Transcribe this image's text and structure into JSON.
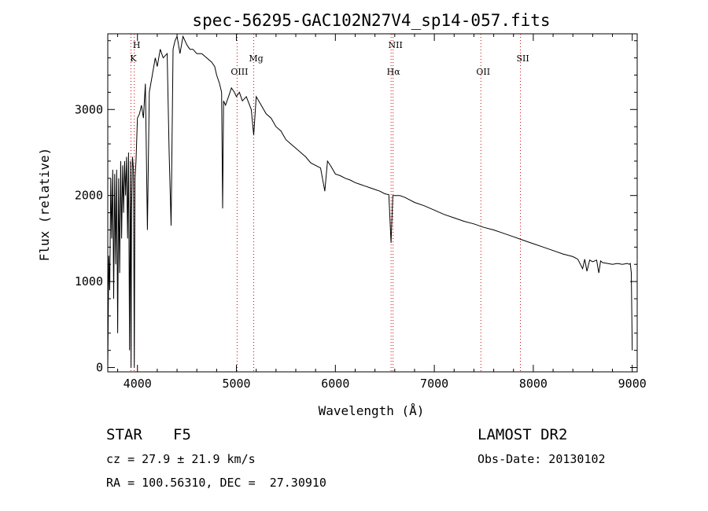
{
  "chart_data": {
    "type": "line",
    "title": "spec-56295-GAC102N27V4_sp14-057.fits",
    "xlabel": "Wavelength (Å)",
    "ylabel": "Flux (relative)",
    "xlim": [
      3700,
      9050
    ],
    "ylim": [
      -50,
      3880
    ],
    "xticks": [
      4000,
      5000,
      6000,
      7000,
      8000,
      9000
    ],
    "yticks": [
      0,
      1000,
      2000,
      3000
    ],
    "xtick_labels": [
      "4000",
      "5000",
      "6000",
      "7000",
      "8000",
      "9000"
    ],
    "ytick_labels": [
      "0",
      "1000",
      "2000",
      "3000"
    ],
    "grid": false,
    "line_color": "#000000",
    "marker_color": "#cc0000",
    "spectral_lines": [
      {
        "label": "H",
        "wavelength": 3968,
        "row": 0
      },
      {
        "label": "K",
        "wavelength": 3934,
        "row": 1
      },
      {
        "label": "OIII",
        "wavelength": 5007,
        "row": 2
      },
      {
        "label": "Mg",
        "wavelength": 5175,
        "row": 1
      },
      {
        "label": "NII",
        "wavelength": 6583,
        "row": 0
      },
      {
        "label": "Hα",
        "wavelength": 6563,
        "row": 2
      },
      {
        "label": "OII",
        "wavelength": 7470,
        "row": 2
      },
      {
        "label": "SII",
        "wavelength": 7870,
        "row": 1
      }
    ],
    "series": [
      {
        "x": [
          3700,
          3710,
          3720,
          3730,
          3740,
          3750,
          3760,
          3770,
          3780,
          3790,
          3800,
          3810,
          3820,
          3830,
          3840,
          3850,
          3860,
          3870,
          3880,
          3890,
          3900,
          3910,
          3920,
          3930,
          3935,
          3940,
          3950,
          3960,
          3968,
          3975,
          3985,
          4000,
          4020,
          4040,
          4060,
          4080,
          4101,
          4120,
          4150,
          4180,
          4200,
          4230,
          4260,
          4300,
          4320,
          4340,
          4360,
          4380,
          4400,
          4430,
          4460,
          4500,
          4530,
          4560,
          4600,
          4650,
          4700,
          4750,
          4780,
          4800,
          4830,
          4850,
          4861,
          4870,
          4890,
          4920,
          4950,
          4980,
          5000,
          5030,
          5060,
          5100,
          5150,
          5175,
          5200,
          5250,
          5300,
          5350,
          5400,
          5450,
          5500,
          5550,
          5600,
          5650,
          5700,
          5750,
          5800,
          5850,
          5893,
          5920,
          5950,
          6000,
          6050,
          6100,
          6150,
          6200,
          6250,
          6300,
          6350,
          6400,
          6450,
          6500,
          6540,
          6563,
          6580,
          6600,
          6650,
          6700,
          6800,
          6900,
          7000,
          7100,
          7200,
          7300,
          7400,
          7500,
          7600,
          7700,
          7800,
          7900,
          8000,
          8100,
          8200,
          8300,
          8400,
          8450,
          8498,
          8520,
          8542,
          8570,
          8600,
          8640,
          8662,
          8680,
          8700,
          8750,
          8800,
          8850,
          8900,
          8950,
          8970,
          8980,
          8990,
          9000
        ],
        "y": [
          0,
          1300,
          900,
          2200,
          1500,
          2300,
          800,
          2250,
          1200,
          2300,
          400,
          2200,
          1100,
          2400,
          1500,
          2350,
          1800,
          2400,
          2000,
          2450,
          1500,
          2500,
          200,
          2400,
          0,
          1800,
          2450,
          2300,
          0,
          2200,
          2400,
          2900,
          2950,
          3050,
          2900,
          3300,
          1600,
          3200,
          3400,
          3600,
          3500,
          3700,
          3600,
          3650,
          2500,
          1650,
          3700,
          3800,
          3850,
          3650,
          3850,
          3750,
          3700,
          3700,
          3650,
          3650,
          3600,
          3550,
          3500,
          3400,
          3300,
          3200,
          1850,
          3100,
          3050,
          3150,
          3250,
          3200,
          3150,
          3200,
          3100,
          3150,
          3000,
          2700,
          3150,
          3050,
          2950,
          2900,
          2800,
          2750,
          2650,
          2600,
          2550,
          2500,
          2450,
          2380,
          2350,
          2320,
          2050,
          2400,
          2350,
          2250,
          2230,
          2200,
          2180,
          2150,
          2130,
          2110,
          2090,
          2070,
          2050,
          2020,
          2010,
          1450,
          2000,
          2000,
          2000,
          1980,
          1920,
          1880,
          1830,
          1780,
          1740,
          1700,
          1670,
          1630,
          1600,
          1560,
          1520,
          1480,
          1440,
          1400,
          1360,
          1320,
          1290,
          1260,
          1150,
          1260,
          1120,
          1250,
          1230,
          1250,
          1100,
          1240,
          1220,
          1210,
          1200,
          1210,
          1200,
          1210,
          1200,
          1210,
          1100,
          200
        ]
      }
    ]
  },
  "info": {
    "object_type": "STAR",
    "subclass": "F5",
    "cz": "cz = 27.9 ± 21.9 km/s",
    "coords": "RA = 100.56310, DEC =  27.30910",
    "survey": "LAMOST DR2",
    "obs_date": "Obs-Date: 20130102"
  }
}
